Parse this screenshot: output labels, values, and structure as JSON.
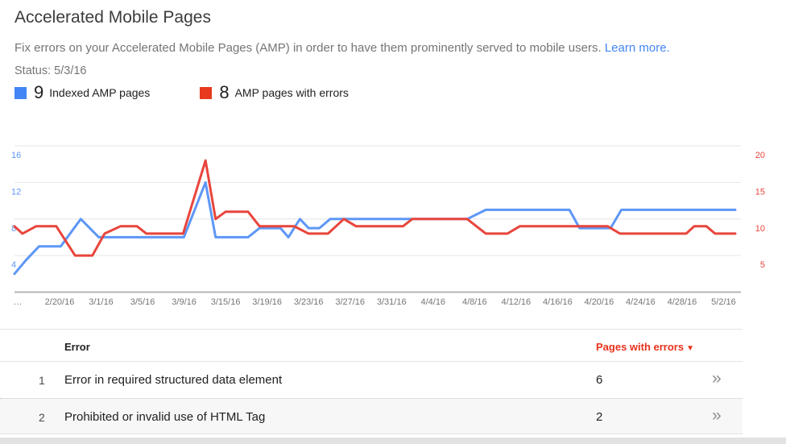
{
  "page": {
    "title": "Accelerated Mobile Pages",
    "description": "Fix errors on your Accelerated Mobile Pages (AMP) in order to have them prominently served to mobile users.",
    "learn_more_label": "Learn more.",
    "status": "Status: 5/3/16"
  },
  "legend": [
    {
      "value": "9",
      "label": "Indexed AMP pages",
      "color": "#4285f4"
    },
    {
      "value": "8",
      "label": "AMP pages with errors",
      "color": "#e8391f"
    }
  ],
  "chart_data": {
    "type": "line",
    "title": "",
    "grid": true,
    "legend_position": "top",
    "x_axis": {
      "labels": [
        "…",
        "2/20/16",
        "3/1/16",
        "3/5/16",
        "3/9/16",
        "3/15/16",
        "3/19/16",
        "3/23/16",
        "3/27/16",
        "3/31/16",
        "4/4/16",
        "4/8/16",
        "4/12/16",
        "4/16/16",
        "4/20/16",
        "4/24/16",
        "4/28/16",
        "5/2/16"
      ]
    },
    "y_axis_left": {
      "ticks": [
        4,
        8,
        12,
        16
      ],
      "min": 0,
      "max": 16,
      "color": "#5e97f6"
    },
    "y_axis_right": {
      "ticks": [
        5,
        10,
        15,
        20
      ],
      "min": 0,
      "max": 20,
      "color": "#e8453c"
    },
    "series": [
      {
        "id": "indexed-amp-pages",
        "name": "Indexed AMP pages",
        "axis": "left",
        "color": "#5e97f6",
        "current_value": 9,
        "points": [
          [
            0,
            2
          ],
          [
            1.6,
            3.5
          ],
          [
            3.4,
            5
          ],
          [
            6.4,
            5
          ],
          [
            9.2,
            8
          ],
          [
            11.7,
            6
          ],
          [
            23.5,
            6
          ],
          [
            26.5,
            12
          ],
          [
            27.9,
            6
          ],
          [
            32.4,
            6
          ],
          [
            34,
            7
          ],
          [
            36.9,
            7
          ],
          [
            38,
            6
          ],
          [
            39.6,
            8
          ],
          [
            40.8,
            7
          ],
          [
            42.3,
            7
          ],
          [
            43.8,
            8
          ],
          [
            62.8,
            8
          ],
          [
            65.4,
            9
          ],
          [
            77,
            9
          ],
          [
            78.4,
            7
          ],
          [
            82.7,
            7
          ],
          [
            84.2,
            9
          ],
          [
            100,
            9
          ]
        ]
      },
      {
        "id": "amp-pages-with-errors",
        "name": "AMP pages with errors",
        "axis": "right",
        "color": "#e8453c",
        "current_value": 8,
        "points": [
          [
            0,
            9
          ],
          [
            1.1,
            8
          ],
          [
            3,
            9
          ],
          [
            5.8,
            9
          ],
          [
            8.4,
            5
          ],
          [
            10.8,
            5
          ],
          [
            12.5,
            8
          ],
          [
            14.7,
            9
          ],
          [
            17,
            9
          ],
          [
            18.3,
            8
          ],
          [
            23.4,
            8
          ],
          [
            26.5,
            18
          ],
          [
            27.9,
            10
          ],
          [
            29.3,
            11
          ],
          [
            32.4,
            11
          ],
          [
            34,
            9
          ],
          [
            38.8,
            9
          ],
          [
            40.8,
            8
          ],
          [
            43.5,
            8
          ],
          [
            45.7,
            10
          ],
          [
            47.4,
            9
          ],
          [
            53.9,
            9
          ],
          [
            55.2,
            10
          ],
          [
            62.8,
            10
          ],
          [
            65.4,
            8
          ],
          [
            68.4,
            8
          ],
          [
            70.1,
            9
          ],
          [
            82.3,
            9
          ],
          [
            84,
            8
          ],
          [
            93.2,
            8
          ],
          [
            94.3,
            9
          ],
          [
            96,
            9
          ],
          [
            97.2,
            8
          ],
          [
            100,
            8
          ]
        ]
      }
    ]
  },
  "table": {
    "columns": {
      "error": "Error",
      "pages_with_errors": "Pages with errors",
      "sort_icon": "▼"
    },
    "rows": [
      {
        "index": "1",
        "error": "Error in required structured data element",
        "pages_with_errors": "6"
      },
      {
        "index": "2",
        "error": "Prohibited or invalid use of HTML Tag",
        "pages_with_errors": "2"
      }
    ],
    "row_chevron": "»"
  }
}
